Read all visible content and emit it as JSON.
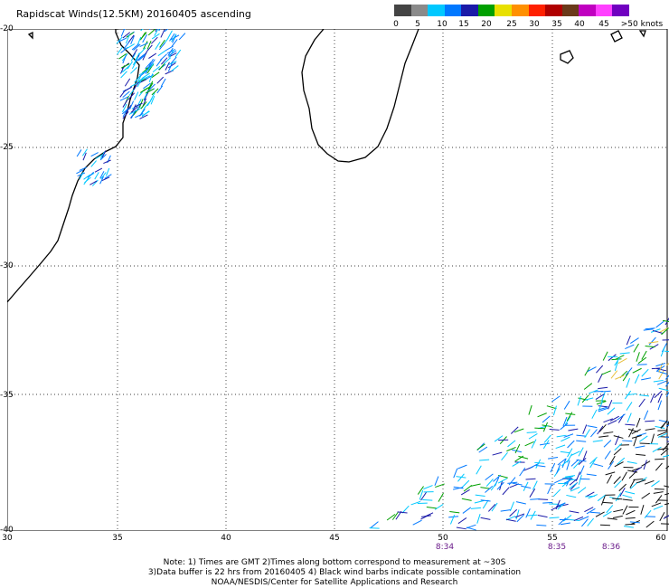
{
  "title": "Rapidscat Winds(12.5KM) 20160405 ascending",
  "legend": {
    "labels": [
      "0",
      "5",
      "10",
      "15",
      "20",
      "25",
      "30",
      "35",
      "40",
      "45",
      ">50 knots"
    ],
    "colors": [
      "#444444",
      "#8a8a8a",
      "#00c8ff",
      "#0078ff",
      "#1a1aa8",
      "#00a000",
      "#e8e000",
      "#ff9000",
      "#ff2000",
      "#b00000",
      "#6b3a1a",
      "#c000c0",
      "#ff40ff",
      "#7000c0"
    ]
  },
  "map": {
    "lat_labels": [
      "-20",
      "-25",
      "-30",
      "-35",
      "-40"
    ],
    "lon_labels": [
      "30",
      "35",
      "40",
      "45",
      "50",
      "55",
      "60"
    ],
    "time_labels": [
      "8:34",
      "8:35",
      "8:36"
    ]
  },
  "notes": [
    "Note: 1) Times are GMT 2)Times along bottom correspond to measurement at ~30S",
    "3)Data buffer is 22 hrs from 20160405 4) Black wind barbs indicate possible contamination",
    "NOAA/NESDIS/Center for Satellite Applications and Research"
  ]
}
